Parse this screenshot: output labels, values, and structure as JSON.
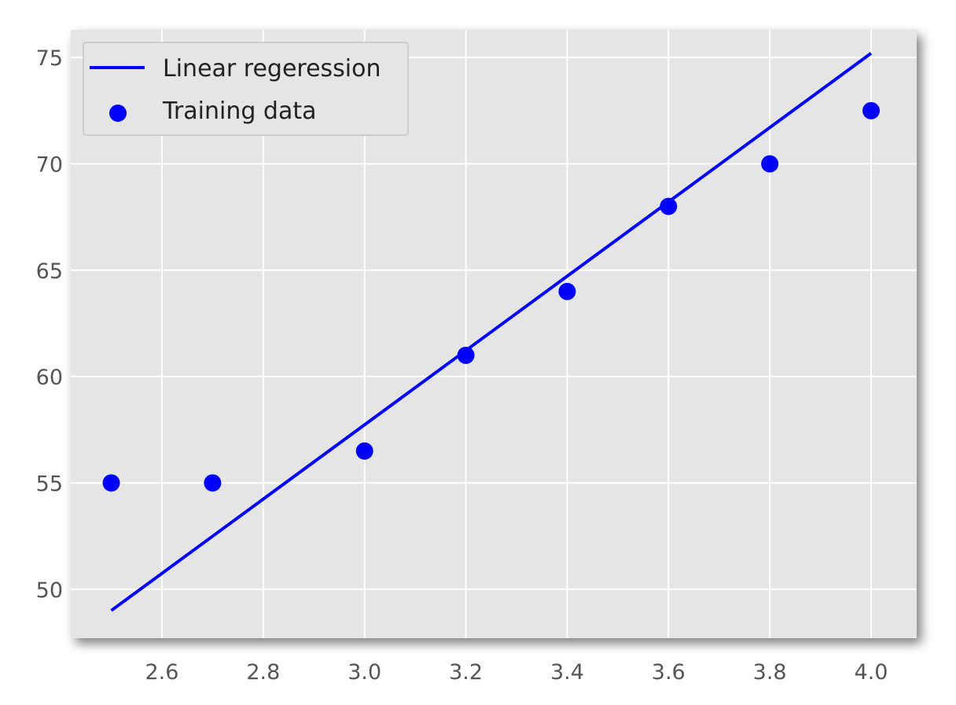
{
  "chart_data": {
    "type": "scatter",
    "title": "",
    "xlabel": "",
    "ylabel": "",
    "xlim": [
      2.42,
      4.09
    ],
    "ylim": [
      47.7,
      76.3
    ],
    "x_ticks": [
      2.6,
      2.8,
      3.0,
      3.2,
      3.4,
      3.6,
      3.8,
      4.0
    ],
    "x_tick_labels": [
      "2.6",
      "2.8",
      "3.0",
      "3.2",
      "3.4",
      "3.6",
      "3.8",
      "4.0"
    ],
    "y_ticks": [
      50,
      55,
      60,
      65,
      70,
      75
    ],
    "y_tick_labels": [
      "50",
      "55",
      "60",
      "65",
      "70",
      "75"
    ],
    "grid": true,
    "legend_position": "top-left",
    "series": [
      {
        "name": "Linear regeression",
        "kind": "line",
        "color": "#0000ff",
        "x": [
          2.5,
          4.0
        ],
        "y": [
          49.0,
          75.2
        ]
      },
      {
        "name": "Training data",
        "kind": "scatter",
        "color": "#0000ff",
        "x": [
          2.5,
          2.7,
          3.0,
          3.2,
          3.4,
          3.6,
          3.8,
          4.0
        ],
        "y": [
          55.0,
          55.0,
          56.5,
          61.0,
          64.0,
          68.0,
          70.0,
          72.5
        ]
      }
    ]
  },
  "style": {
    "plot_background": "#e5e5e5",
    "grid_color": "#ffffff",
    "legend_background": "#e5e5e5",
    "legend_border": "#cccccc"
  }
}
